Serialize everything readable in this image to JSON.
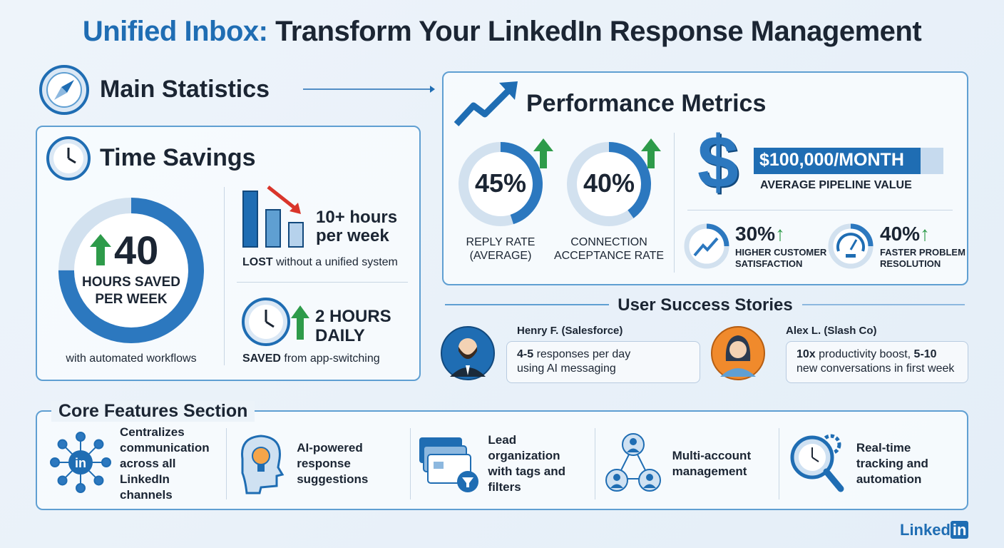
{
  "title": {
    "highlight": "Unified Inbox:",
    "rest": " Transform Your LinkedIn Response Management"
  },
  "main_statistics": {
    "heading": "Main Statistics",
    "icon": "compass-icon"
  },
  "time_savings": {
    "heading": "Time Savings",
    "icon": "clock-icon",
    "big_number": "40",
    "big_label_1": "HOURS SAVED",
    "big_label_2": "PER WEEK",
    "big_caption": "with automated workflows",
    "ring_fill_percent": 75,
    "lost_value_1": "10+ hours",
    "lost_value_2": "per week",
    "lost_caption_bold": "LOST",
    "lost_caption_rest": " without a unified system",
    "daily_value_1": "2 HOURS",
    "daily_value_2": "DAILY",
    "daily_caption_bold": "SAVED",
    "daily_caption_rest": " from app-switching"
  },
  "performance": {
    "heading": "Performance Metrics",
    "icon": "trending-up-icon",
    "reply_rate": {
      "value": "45%",
      "label_1": "REPLY RATE",
      "label_2": "(AVERAGE)",
      "percent": 45
    },
    "acceptance": {
      "value": "40%",
      "label_1": "CONNECTION",
      "label_2": "ACCEPTANCE RATE",
      "percent": 40
    },
    "pipeline": {
      "value": "$100,000/MONTH",
      "label": "AVERAGE PIPELINE VALUE"
    },
    "satisfaction": {
      "value": "30%",
      "label_1": "HIGHER CUSTOMER",
      "label_2": "SATISFACTION"
    },
    "resolution": {
      "value": "40%",
      "label_1": "FASTER PROBLEM",
      "label_2": "RESOLUTION"
    }
  },
  "stories": {
    "heading": "User Success Stories",
    "items": [
      {
        "name": "Henry F. (Salesforce)",
        "quote_bold": "4-5",
        "quote_rest": " responses per day",
        "quote_line2": "using AI messaging",
        "avatar_color": "#1f6db3"
      },
      {
        "name": "Alex L. (Slash Co)",
        "quote_bold": "10x",
        "quote_mid": " productivity boost, ",
        "quote_bold2": "5-10",
        "quote_line2": "new conversations in first week",
        "avatar_color": "#f08a2c"
      }
    ]
  },
  "features": {
    "heading": "Core Features Section",
    "items": [
      {
        "icon": "linkedin-network-icon",
        "lines": [
          "Centralizes",
          "communication",
          "across all LinkedIn",
          "channels"
        ]
      },
      {
        "icon": "ai-brain-icon",
        "lines": [
          "AI-powered",
          "response",
          "suggestions"
        ]
      },
      {
        "icon": "filter-cards-icon",
        "lines": [
          "Lead organization",
          "with tags and",
          "filters"
        ]
      },
      {
        "icon": "multi-account-icon",
        "lines": [
          "Multi-account",
          "management"
        ]
      },
      {
        "icon": "tracking-search-icon",
        "lines": [
          "Real-time",
          "tracking and",
          "automation"
        ]
      }
    ]
  },
  "brand": {
    "logo_text": "Linked",
    "logo_in": "in"
  },
  "colors": {
    "primary": "#1f6db3",
    "up_arrow": "#2e9b4a",
    "down_arrow": "#d9352b",
    "ring_track": "#d2e1ef"
  }
}
